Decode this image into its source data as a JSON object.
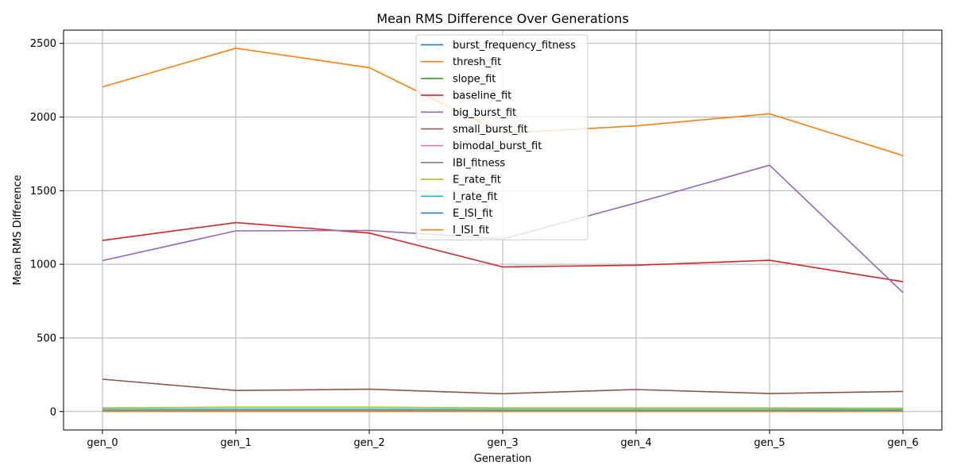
{
  "chart_data": {
    "type": "line",
    "title": "Mean RMS Difference Over Generations",
    "xlabel": "Generation",
    "ylabel": "Mean RMS Difference",
    "categories": [
      "gen_0",
      "gen_1",
      "gen_2",
      "gen_3",
      "gen_4",
      "gen_5",
      "gen_6"
    ],
    "y_ticks": [
      0,
      500,
      1000,
      1500,
      2000,
      2500
    ],
    "ylim": [
      -125,
      2590
    ],
    "grid": true,
    "legend_position": "upper-center",
    "series": [
      {
        "name": "burst_frequency_fitness",
        "color": "#1f77b4",
        "values": [
          5,
          5,
          5,
          5,
          5,
          5,
          5
        ]
      },
      {
        "name": "thresh_fit",
        "color": "#ff7f0e",
        "values": [
          2205,
          2467,
          2335,
          1890,
          1940,
          2022,
          1738
        ]
      },
      {
        "name": "slope_fit",
        "color": "#2ca02c",
        "values": [
          4,
          4,
          4,
          4,
          4,
          4,
          4
        ]
      },
      {
        "name": "baseline_fit",
        "color": "#d62728",
        "values": [
          1162,
          1283,
          1212,
          982,
          994,
          1027,
          882
        ]
      },
      {
        "name": "big_burst_fit",
        "color": "#9467bd",
        "values": [
          1025,
          1227,
          1230,
          1172,
          1417,
          1673,
          808
        ]
      },
      {
        "name": "small_burst_fit",
        "color": "#8c564b",
        "values": [
          220,
          143,
          152,
          121,
          150,
          122,
          137
        ]
      },
      {
        "name": "bimodal_burst_fit",
        "color": "#e377c2",
        "values": [
          3,
          3,
          3,
          3,
          3,
          3,
          3
        ]
      },
      {
        "name": "IBI_fitness",
        "color": "#7f7f7f",
        "values": [
          6,
          8,
          8,
          6,
          6,
          6,
          6
        ]
      },
      {
        "name": "E_rate_fit",
        "color": "#bcbd22",
        "values": [
          25,
          30,
          30,
          25,
          25,
          25,
          23
        ]
      },
      {
        "name": "I_rate_fit",
        "color": "#17becf",
        "values": [
          15,
          18,
          18,
          15,
          15,
          15,
          14
        ]
      },
      {
        "name": "E_ISI_fit",
        "color": "#1f77b4",
        "values": [
          2,
          2,
          2,
          2,
          2,
          2,
          2
        ]
      },
      {
        "name": "I_ISI_fit",
        "color": "#ff7f0e",
        "values": [
          2,
          2,
          2,
          2,
          2,
          2,
          2
        ]
      }
    ]
  }
}
